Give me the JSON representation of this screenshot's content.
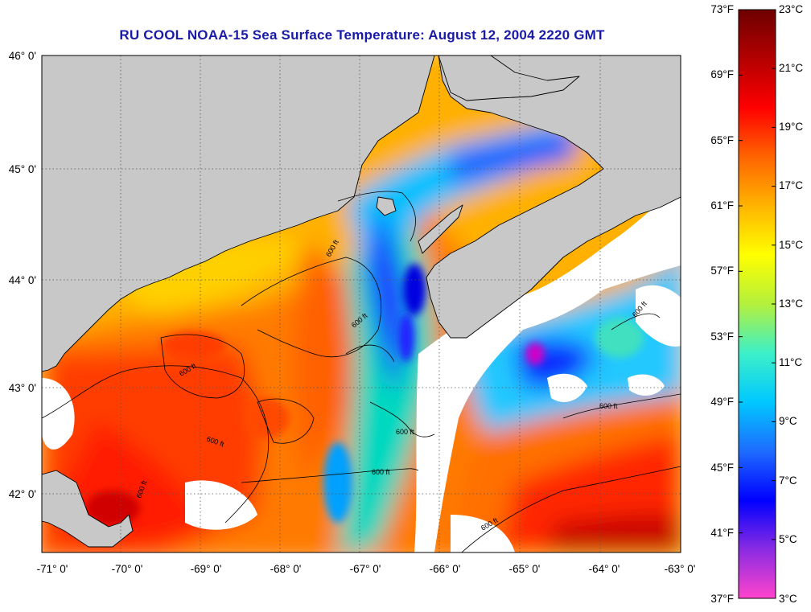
{
  "title": "RU COOL  NOAA-15  Sea Surface Temperature:  August 12, 2004 2220 GMT",
  "map": {
    "lat_labels": [
      "46° 0'",
      "45° 0'",
      "44° 0'",
      "43° 0'",
      "42° 0'"
    ],
    "lon_labels": [
      "-71° 0'",
      "-70° 0'",
      "-69° 0'",
      "-68° 0'",
      "-67° 0'",
      "-66° 0'",
      "-65° 0'",
      "-64° 0'",
      "-63° 0'"
    ],
    "depth_contour_label": "600 ft",
    "colors": {
      "land": "#c8c8c8",
      "cloud": "#ffffff",
      "coast": "#000000"
    }
  },
  "colorbar": {
    "fahrenheit": [
      "73°F",
      "69°F",
      "65°F",
      "61°F",
      "57°F",
      "53°F",
      "49°F",
      "45°F",
      "41°F",
      "37°F"
    ],
    "celsius": [
      "23°C",
      "21°C",
      "19°C",
      "17°C",
      "15°C",
      "13°C",
      "11°C",
      "9°C",
      "7°C",
      "5°C",
      "3°C"
    ],
    "gradient": [
      "#ff44cc",
      "#8a2be2",
      "#0000ff",
      "#1e6cff",
      "#00c8ff",
      "#3cf0c8",
      "#b4f03c",
      "#ffff00",
      "#ffb400",
      "#ff6400",
      "#ff0000",
      "#b40000",
      "#6e0000"
    ]
  }
}
